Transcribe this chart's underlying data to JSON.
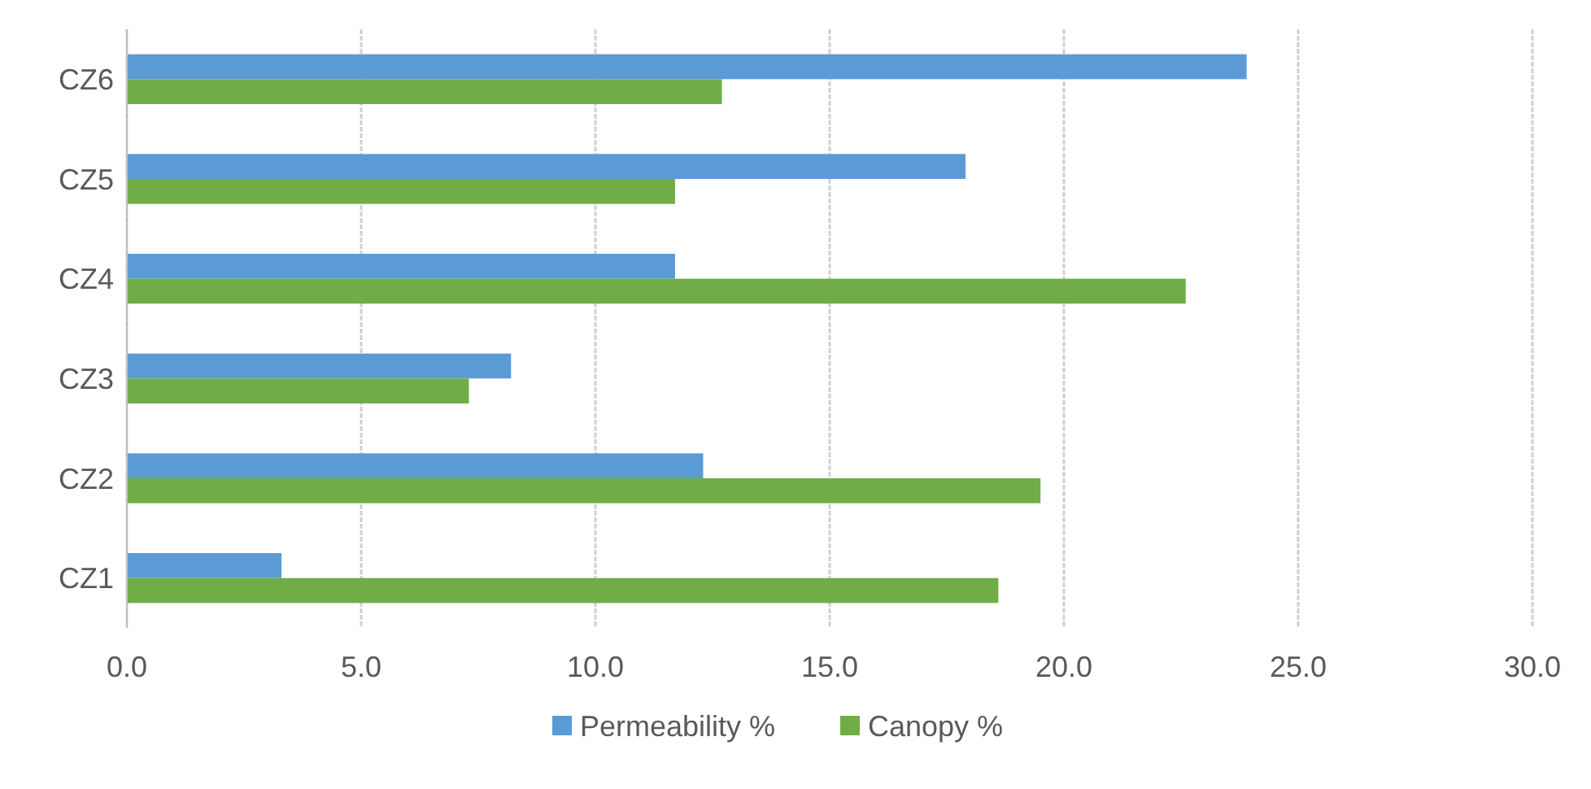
{
  "chart_data": {
    "type": "bar",
    "orientation": "horizontal",
    "categories": [
      "CZ6",
      "CZ5",
      "CZ4",
      "CZ3",
      "CZ2",
      "CZ1"
    ],
    "series": [
      {
        "name": "Permeability %",
        "color": "#5b9bd5",
        "values": [
          23.9,
          17.9,
          11.7,
          8.2,
          12.3,
          3.3
        ]
      },
      {
        "name": "Canopy %",
        "color": "#70ad47",
        "values": [
          12.7,
          11.7,
          22.6,
          7.3,
          19.5,
          18.6
        ]
      }
    ],
    "xlim": [
      0,
      30
    ],
    "xticks": [
      {
        "value": 0,
        "label": "0.0"
      },
      {
        "value": 5,
        "label": "5.0"
      },
      {
        "value": 10,
        "label": "10.0"
      },
      {
        "value": 15,
        "label": "15.0"
      },
      {
        "value": 20,
        "label": "20.0"
      },
      {
        "value": 25,
        "label": "25.0"
      },
      {
        "value": 30,
        "label": "30.0"
      }
    ],
    "grid": "x",
    "legend": "bottom"
  }
}
